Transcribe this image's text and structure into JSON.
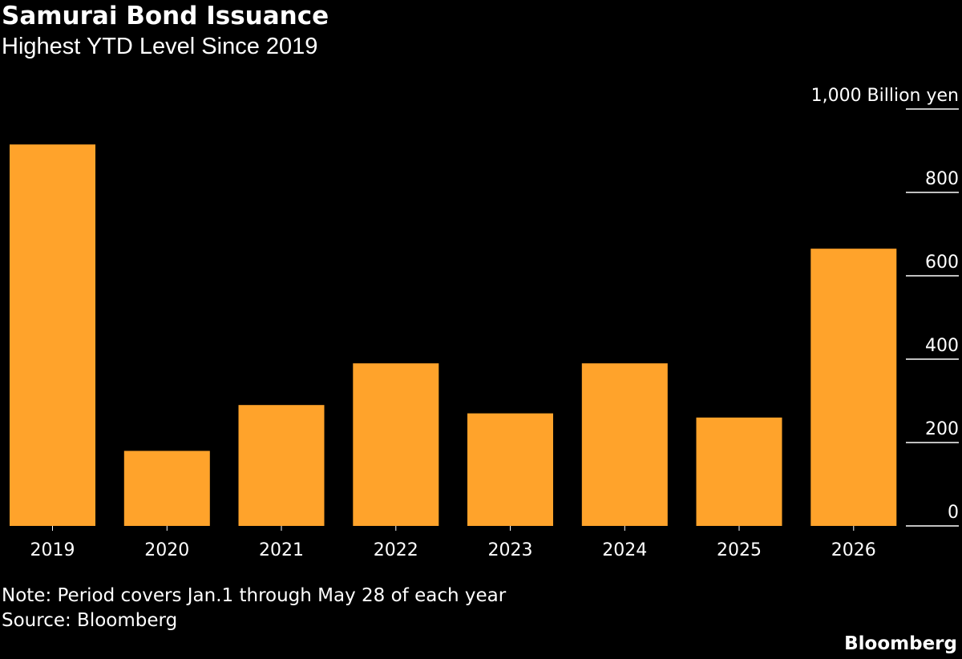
{
  "header": {
    "title": "Samurai Bond Issuance",
    "subtitle": "Highest YTD Level Since 2019"
  },
  "footer": {
    "note": "Note: Period covers Jan.1 through May 28 of each year",
    "source": "Source: Bloomberg",
    "brand": "Bloomberg"
  },
  "colors": {
    "background": "#000000",
    "bar": "#ffa32b",
    "text": "#ffffff",
    "gridline": "#ffffff"
  },
  "chart_data": {
    "type": "bar",
    "title": "Samurai Bond Issuance",
    "subtitle": "Highest YTD Level Since 2019",
    "categories": [
      "2019",
      "2020",
      "2021",
      "2022",
      "2023",
      "2024",
      "2025",
      "2026"
    ],
    "values": [
      915,
      180,
      290,
      390,
      270,
      390,
      260,
      665
    ],
    "ylim": [
      0,
      1000
    ],
    "yticks": [
      0,
      200,
      400,
      600,
      800,
      1000
    ],
    "ytick_labels": [
      "0",
      "200",
      "400",
      "600",
      "800",
      "1,000 Billion yen"
    ],
    "y_axis_position": "right",
    "grid": false
  }
}
